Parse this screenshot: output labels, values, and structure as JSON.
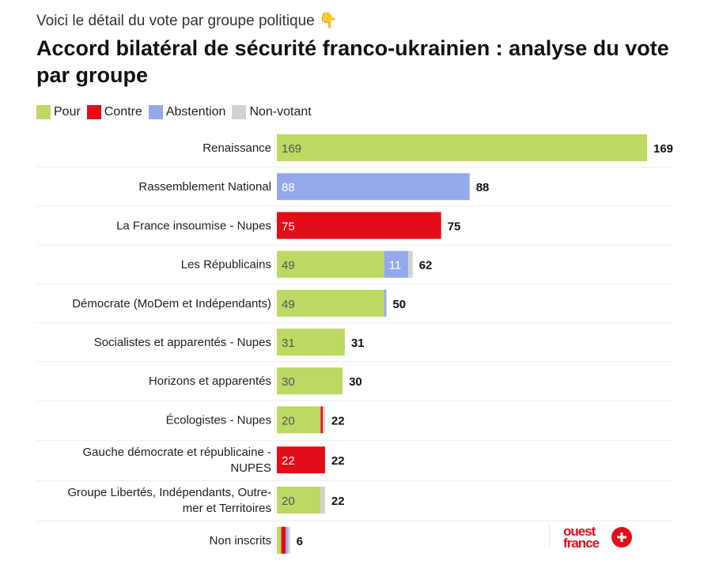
{
  "subtitle": "Voici le détail du vote par groupe politique 👇",
  "title": "Accord bilatéral de sécurité franco-ukrainien : analyse du vote par groupe",
  "legend": [
    {
      "label": "Pour",
      "color": "#bcd963"
    },
    {
      "label": "Contre",
      "color": "#e30d1a"
    },
    {
      "label": "Abstention",
      "color": "#94a9ec"
    },
    {
      "label": "Non-votant",
      "color": "#d2d2d2"
    }
  ],
  "logo": {
    "line1": "ouest",
    "line2": "france"
  },
  "chart_data": {
    "type": "bar",
    "orientation": "horizontal",
    "stacked": true,
    "categories": [
      "Renaissance",
      "Rassemblement National",
      "La France insoumise - Nupes",
      "Les Républicains",
      "Démocrate (MoDem et Indépendants)",
      "Socialistes et apparentés - Nupes",
      "Horizons et apparentés",
      "Écologistes - Nupes",
      "Gauche démocrate et républicaine - NUPES",
      "Groupe Libertés, Indépendants, Outre-mer et Territoires",
      "Non inscrits"
    ],
    "category_lines": [
      [
        "Renaissance"
      ],
      [
        "Rassemblement National"
      ],
      [
        "La France insoumise - Nupes"
      ],
      [
        "Les Républicains"
      ],
      [
        "Démocrate (MoDem et Indépendants)"
      ],
      [
        "Socialistes et apparentés - Nupes"
      ],
      [
        "Horizons et apparentés"
      ],
      [
        "Écologistes - Nupes"
      ],
      [
        "Gauche démocrate et républicaine -",
        "NUPES"
      ],
      [
        "Groupe Libertés, Indépendants, Outre-",
        "mer et Territoires"
      ],
      [
        "Non inscrits"
      ]
    ],
    "series": [
      {
        "name": "Pour",
        "color": "#bcd963",
        "label_color": "#555555",
        "values": [
          169,
          0,
          0,
          49,
          49,
          31,
          30,
          20,
          0,
          20,
          2
        ]
      },
      {
        "name": "Contre",
        "color": "#e30d1a",
        "label_color": "#ffffff",
        "values": [
          0,
          0,
          75,
          0,
          0,
          0,
          0,
          1,
          22,
          0,
          2
        ]
      },
      {
        "name": "Abstention",
        "color": "#94a9ec",
        "label_color": "#ffffff",
        "values": [
          0,
          88,
          0,
          11,
          1,
          0,
          0,
          0,
          0,
          0,
          1
        ]
      },
      {
        "name": "Non-votant",
        "color": "#d2d2d2",
        "label_color": "#555555",
        "values": [
          0,
          0,
          0,
          2,
          0,
          0,
          0,
          1,
          0,
          2,
          1
        ]
      }
    ],
    "totals": [
      169,
      88,
      75,
      62,
      50,
      31,
      30,
      22,
      22,
      22,
      6
    ],
    "xlim": [
      0,
      175
    ],
    "grid": false
  }
}
